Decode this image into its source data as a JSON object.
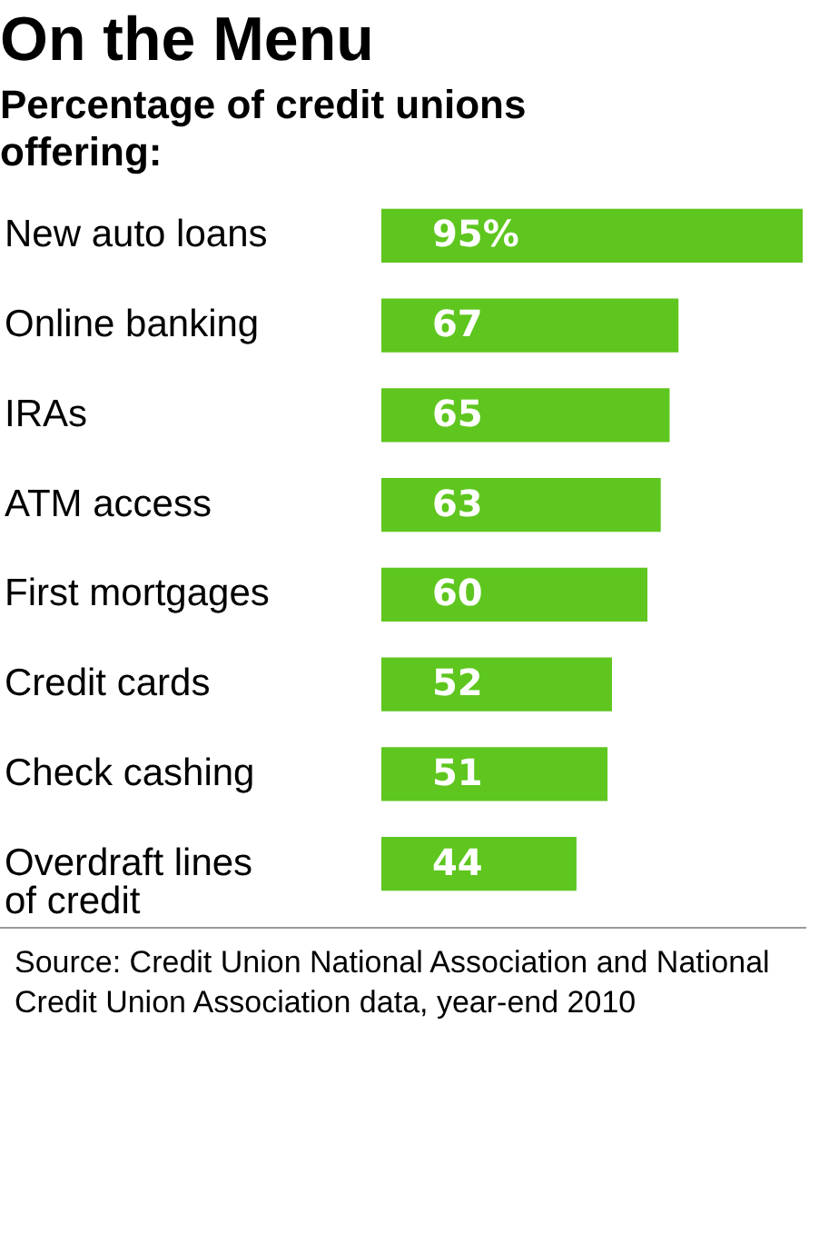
{
  "chart_data": {
    "type": "bar",
    "orientation": "horizontal",
    "title": "On the Menu",
    "subtitle": "Percentage of credit unions offering:",
    "categories": [
      "New auto loans",
      "Online banking",
      "IRAs",
      "ATM access",
      "First mortgages",
      "Credit cards",
      "Check cashing",
      "Overdraft lines of credit"
    ],
    "values": [
      95,
      67,
      65,
      63,
      60,
      52,
      51,
      44
    ],
    "value_labels": [
      "95%",
      "67",
      "65",
      "63",
      "60",
      "52",
      "51",
      "44"
    ],
    "color": "#5ec61e",
    "annotations": [
      "Source: Credit Union National Association and National Credit Union Association data, year-end 2010"
    ]
  }
}
